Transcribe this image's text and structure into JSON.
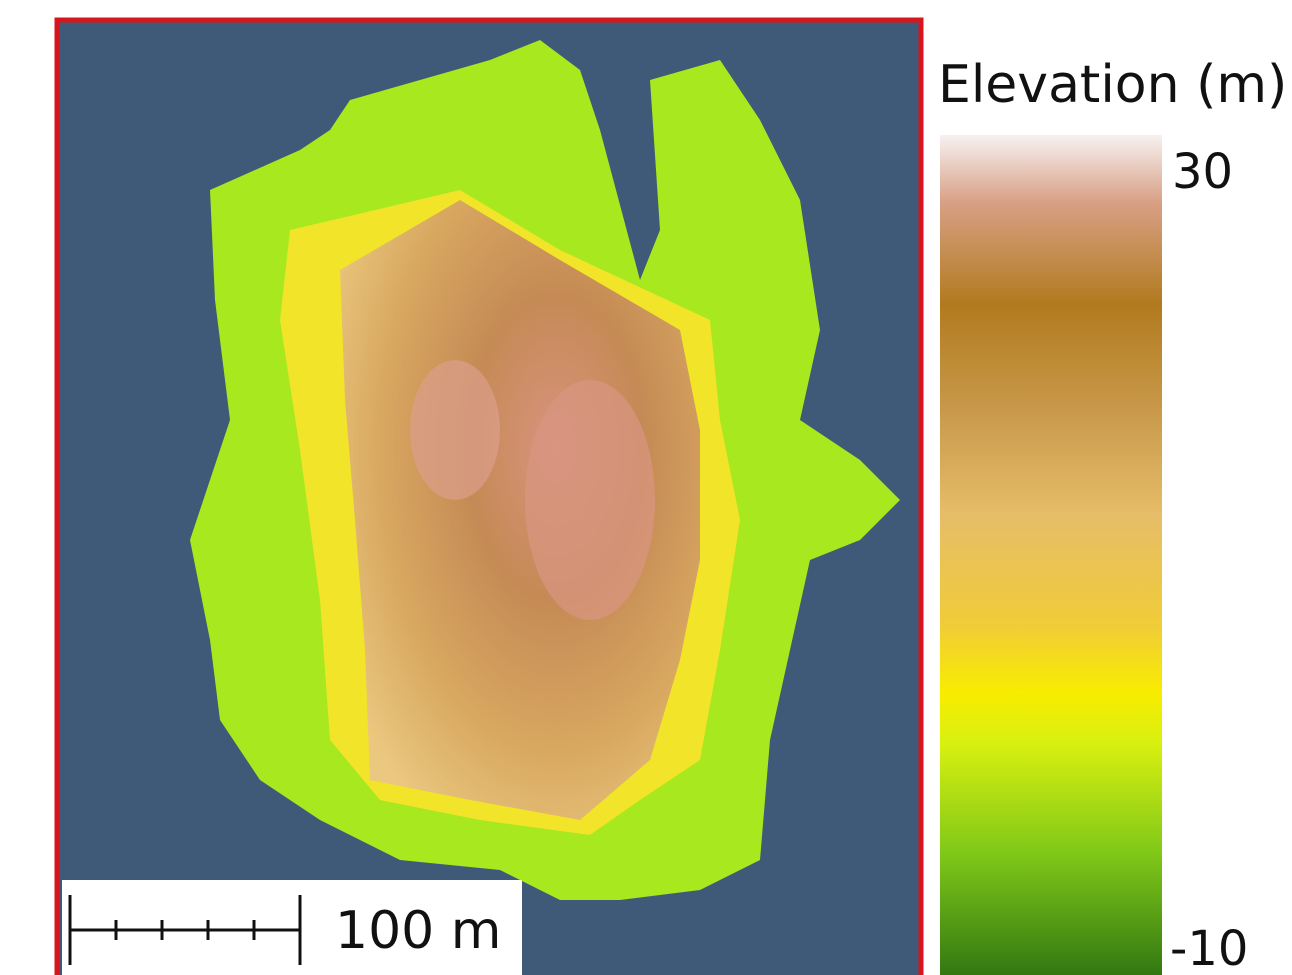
{
  "legend": {
    "title": "Elevation (m)",
    "max": 30,
    "min": -10
  },
  "scale_bar": {
    "label": "100 m"
  }
}
